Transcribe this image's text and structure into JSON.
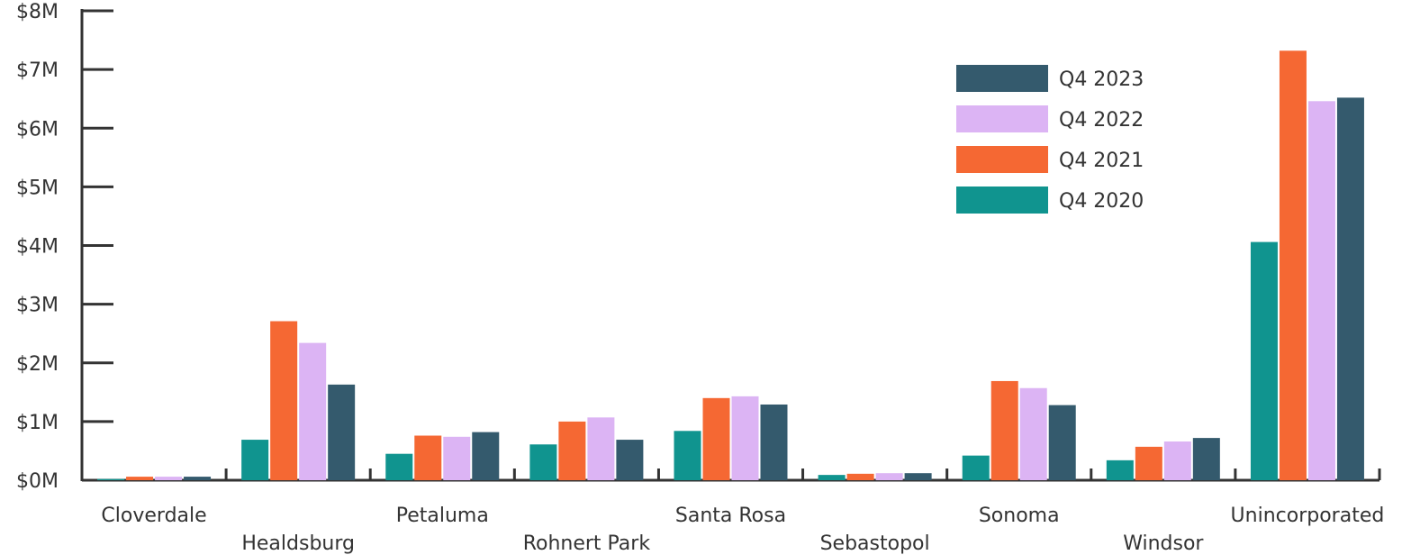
{
  "chart_data": {
    "type": "bar",
    "title": "",
    "xlabel": "",
    "ylabel": "",
    "ylim": [
      0,
      8000000
    ],
    "yticks": [
      {
        "value": 0,
        "label": "$0M"
      },
      {
        "value": 1000000,
        "label": "$1M"
      },
      {
        "value": 2000000,
        "label": "$2M"
      },
      {
        "value": 3000000,
        "label": "$3M"
      },
      {
        "value": 4000000,
        "label": "$4M"
      },
      {
        "value": 5000000,
        "label": "$5M"
      },
      {
        "value": 6000000,
        "label": "$6M"
      },
      {
        "value": 7000000,
        "label": "$7M"
      },
      {
        "value": 8000000,
        "label": "$8M"
      }
    ],
    "categories": [
      "Cloverdale",
      "Healdsburg",
      "Petaluma",
      "Rohnert Park",
      "Santa Rosa",
      "Sebastopol",
      "Sonoma",
      "Windsor",
      "Unincorporated"
    ],
    "series": [
      {
        "name": "Q4 2020",
        "color": "#10948f",
        "values": [
          20000,
          690000,
          450000,
          610000,
          840000,
          90000,
          420000,
          340000,
          4060000
        ]
      },
      {
        "name": "Q4 2021",
        "color": "#f56833",
        "values": [
          60000,
          2710000,
          760000,
          1000000,
          1400000,
          110000,
          1690000,
          570000,
          7320000
        ]
      },
      {
        "name": "Q4 2022",
        "color": "#dcb4f4",
        "values": [
          60000,
          2340000,
          740000,
          1070000,
          1430000,
          120000,
          1570000,
          660000,
          6460000
        ]
      },
      {
        "name": "Q4 2023",
        "color": "#345a6d",
        "values": [
          60000,
          1630000,
          820000,
          690000,
          1290000,
          120000,
          1280000,
          720000,
          6520000
        ]
      }
    ],
    "legend": {
      "position": "top-right",
      "order": [
        "Q4 2023",
        "Q4 2022",
        "Q4 2021",
        "Q4 2020"
      ]
    },
    "grid": false
  }
}
